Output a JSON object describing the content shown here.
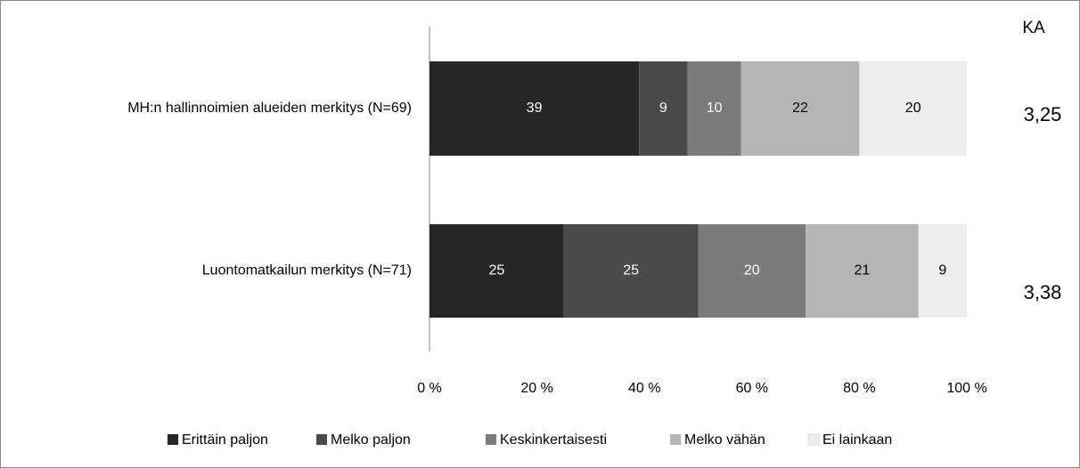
{
  "chart_data": {
    "type": "stacked_barh",
    "categories": [
      "MH:n hallinnoimien alueiden merkitys (N=69)",
      "Luontomatkailun merkitys (N=71)"
    ],
    "series": [
      {
        "name": "Erittäin paljon",
        "color": "#262626",
        "values": [
          39,
          25
        ]
      },
      {
        "name": "Melko paljon",
        "color": "#4a4a4a",
        "values": [
          9,
          25
        ]
      },
      {
        "name": "Keskinkertaisesti",
        "color": "#7b7b7b",
        "values": [
          10,
          20
        ]
      },
      {
        "name": "Melko vähän",
        "color": "#b5b5b5",
        "values": [
          22,
          21
        ]
      },
      {
        "name": "Ei lainkaan",
        "color": "#ededed",
        "values": [
          20,
          9
        ]
      }
    ],
    "xlim": [
      0,
      100
    ],
    "xticks": [
      {
        "value": 0,
        "label": "0 %"
      },
      {
        "value": 20,
        "label": "20 %"
      },
      {
        "value": 40,
        "label": "40 %"
      },
      {
        "value": 60,
        "label": "60 %"
      },
      {
        "value": 80,
        "label": "80 %"
      },
      {
        "value": 100,
        "label": "100 %"
      }
    ],
    "side_title": "KA",
    "side_labels": [
      "3,25",
      "3,38"
    ],
    "legend": "bottom"
  }
}
